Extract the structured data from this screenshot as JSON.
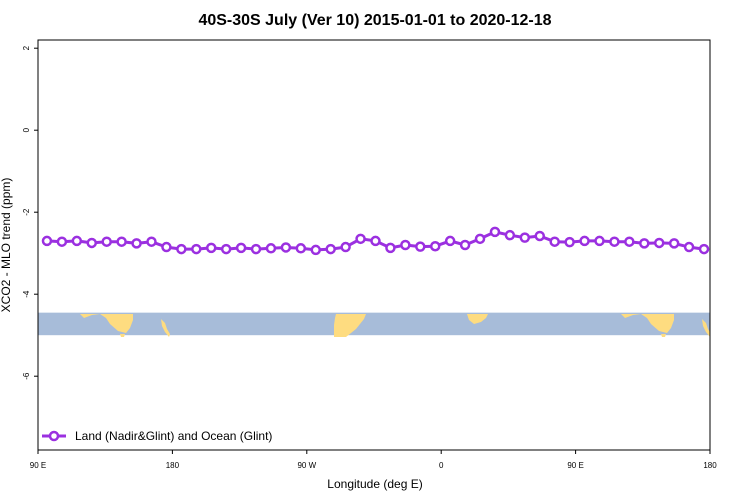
{
  "chart_data": {
    "type": "line",
    "title": "40S-30S July (Ver 10)   2015-01-01 to 2020-12-18",
    "xlabel": "Longitude (deg E)",
    "ylabel": "XCO2 - MLO trend (ppm)",
    "x_ticks": [
      {
        "value": 90,
        "label": "90 E"
      },
      {
        "value": 180,
        "label": "180"
      },
      {
        "value": 270,
        "label": "90 W"
      },
      {
        "value": 360,
        "label": "0"
      },
      {
        "value": 450,
        "label": "90 E"
      },
      {
        "value": 540,
        "label": "180"
      }
    ],
    "y_ticks": [
      {
        "value": 2,
        "label": "2"
      },
      {
        "value": 0,
        "label": "0"
      },
      {
        "value": -2,
        "label": "-2"
      },
      {
        "value": -4,
        "label": "-4"
      },
      {
        "value": -6,
        "label": "-6"
      }
    ],
    "xlim": [
      90,
      540
    ],
    "ylim": [
      -7.8,
      2.2
    ],
    "map_strip": {
      "ymin": -5.0,
      "ymax": -4.45,
      "ocean_color": "#a7bcd9",
      "land_color": "#fedc80"
    },
    "series": [
      {
        "name": "Land (Nadir&Glint) and Ocean (Glint)",
        "color": "#9b30e0",
        "x": [
          96,
          106,
          116,
          126,
          136,
          146,
          156,
          166,
          176,
          186,
          196,
          206,
          216,
          226,
          236,
          246,
          256,
          266,
          276,
          286,
          296,
          306,
          316,
          326,
          336,
          346,
          356,
          366,
          376,
          386,
          396,
          406,
          416,
          426,
          436,
          446,
          456,
          466,
          476,
          486,
          496,
          506,
          516,
          526,
          536
        ],
        "y": [
          -2.7,
          -2.72,
          -2.7,
          -2.75,
          -2.72,
          -2.72,
          -2.76,
          -2.72,
          -2.85,
          -2.9,
          -2.9,
          -2.87,
          -2.9,
          -2.87,
          -2.9,
          -2.88,
          -2.86,
          -2.88,
          -2.92,
          -2.9,
          -2.85,
          -2.65,
          -2.7,
          -2.87,
          -2.8,
          -2.84,
          -2.83,
          -2.7,
          -2.8,
          -2.65,
          -2.48,
          -2.56,
          -2.62,
          -2.58,
          -2.72,
          -2.73,
          -2.7,
          -2.7,
          -2.72,
          -2.72,
          -2.76,
          -2.75,
          -2.76,
          -2.85,
          -2.9
        ]
      }
    ],
    "legend": {
      "position": "bottom-left",
      "label": "Land (Nadir&Glint) and Ocean (Glint)"
    }
  }
}
